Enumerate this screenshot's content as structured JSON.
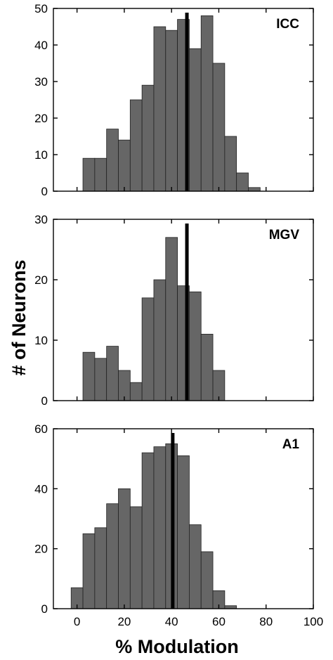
{
  "chart_data": [
    {
      "type": "bar",
      "panel_label": "ICC",
      "bin_width": 5,
      "x": [
        -2.5,
        2.5,
        7.5,
        12.5,
        17.5,
        22.5,
        27.5,
        32.5,
        37.5,
        42.5,
        47.5,
        52.5,
        57.5,
        62.5,
        67.5,
        72.5,
        77.5,
        82.5,
        87.5,
        92.5
      ],
      "values": [
        0,
        9,
        9,
        17,
        14,
        25,
        29,
        45,
        44,
        47,
        39,
        48,
        35,
        15,
        5,
        1,
        0,
        0,
        0,
        0
      ],
      "values_start_x": -2.5,
      "ylim": [
        0,
        50
      ],
      "yticks": [
        "0",
        "10",
        "20",
        "30",
        "40",
        "50"
      ],
      "median_line_x": 46.5
    },
    {
      "type": "bar",
      "panel_label": "MGV",
      "bin_width": 5,
      "values": [
        8,
        7,
        9,
        5,
        3,
        17,
        20,
        27,
        19,
        18,
        11,
        5
      ],
      "values_start_x": 2.5,
      "ylim": [
        0,
        30
      ],
      "yticks": [
        "0",
        "10",
        "20",
        "30"
      ],
      "median_line_x": 46.5
    },
    {
      "type": "bar",
      "panel_label": "A1",
      "bin_width": 5,
      "values": [
        7,
        25,
        27,
        35,
        40,
        34,
        52,
        54,
        55,
        51,
        28,
        19,
        6,
        1
      ],
      "values_start_x": -2.5,
      "ylim": [
        0,
        60
      ],
      "yticks": [
        "0",
        "20",
        "40",
        "60"
      ],
      "median_line_x": 40.5
    }
  ],
  "shared": {
    "xlim": [
      -10,
      100
    ],
    "xticks": [
      "0",
      "20",
      "40",
      "60",
      "80",
      "100"
    ],
    "xlabel": "% Modulation",
    "ylabel": "# of Neurons",
    "bar_color": "#666666",
    "median_color": "#000000"
  }
}
